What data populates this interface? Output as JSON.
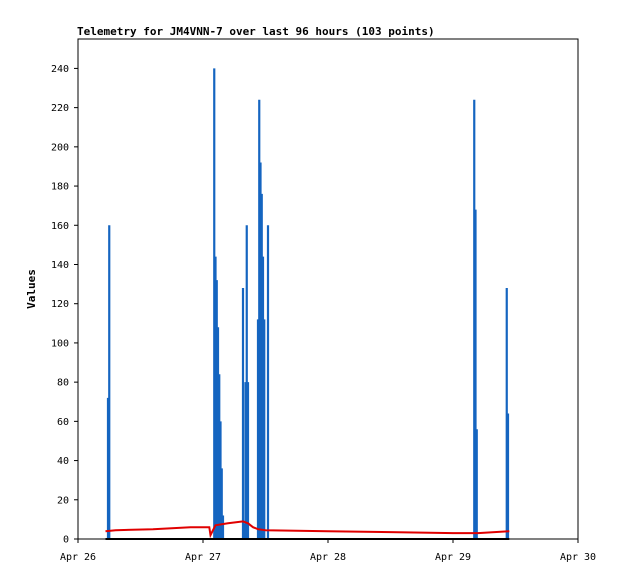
{
  "chart_data": {
    "type": "line",
    "title": "Telemetry for JM4VNN-7 over last 96 hours (103 points)",
    "xlabel": "",
    "ylabel": "Values",
    "xlim": [
      "Apr 26",
      "Apr 30"
    ],
    "ylim": [
      0,
      255
    ],
    "xticks": [
      "Apr 26",
      "Apr 27",
      "Apr 28",
      "Apr 29",
      "Apr 30"
    ],
    "yticks": [
      0,
      20,
      40,
      60,
      80,
      100,
      120,
      140,
      160,
      180,
      200,
      220,
      240
    ],
    "grid": false,
    "colors": {
      "spikes": "#1565c0",
      "trend": "#e00000",
      "baseline": "#000000"
    },
    "series": [
      {
        "style": "spikes",
        "color": "#1565c0",
        "x_days": [
          0.24,
          0.25,
          1.09,
          1.1,
          1.11,
          1.12,
          1.13,
          1.14,
          1.15,
          1.16,
          1.17,
          1.18,
          1.19,
          1.32,
          1.33,
          1.34,
          1.35,
          1.36,
          1.37,
          1.38,
          1.39,
          1.4,
          1.44,
          1.45,
          1.46,
          1.47,
          1.48,
          1.49,
          1.5,
          1.52,
          3.17,
          3.18,
          3.19,
          3.43,
          3.44
        ],
        "y": [
          72,
          160,
          240,
          144,
          132,
          108,
          84,
          60,
          36,
          12,
          0,
          0,
          0,
          128,
          8,
          80,
          160,
          80,
          0,
          0,
          0,
          0,
          112,
          224,
          192,
          176,
          144,
          112,
          0,
          160,
          224,
          168,
          56,
          128,
          64
        ]
      },
      {
        "style": "line",
        "color": "#e00000",
        "x_days": [
          0.22,
          0.3,
          0.6,
          0.9,
          1.05,
          1.06,
          1.1,
          1.2,
          1.32,
          1.36,
          1.4,
          1.44,
          1.5,
          2.0,
          2.5,
          3.0,
          3.2,
          3.45
        ],
        "y": [
          4,
          4.5,
          5,
          6,
          6,
          2,
          7,
          8,
          9,
          8,
          6,
          5,
          4.5,
          4,
          3.5,
          3,
          3,
          4
        ]
      },
      {
        "style": "line",
        "color": "#000000",
        "x_days": [
          0.22,
          3.45
        ],
        "y": [
          0,
          0
        ]
      }
    ]
  }
}
